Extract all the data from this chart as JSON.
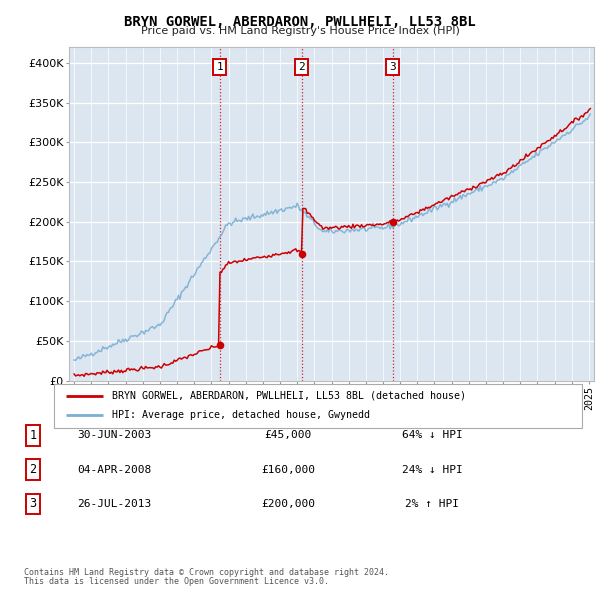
{
  "title": "BRYN GORWEL, ABERDARON, PWLLHELI, LL53 8BL",
  "subtitle": "Price paid vs. HM Land Registry's House Price Index (HPI)",
  "legend_line1": "BRYN GORWEL, ABERDARON, PWLLHELI, LL53 8BL (detached house)",
  "legend_line2": "HPI: Average price, detached house, Gwynedd",
  "transactions": [
    {
      "num": "1",
      "date": "30-JUN-2003",
      "price": "£45,000",
      "pct": "64% ↓ HPI",
      "x": 2003.49
    },
    {
      "num": "2",
      "date": "04-APR-2008",
      "price": "£160,000",
      "pct": "24% ↓ HPI",
      "x": 2008.26
    },
    {
      "num": "3",
      "date": "26-JUL-2013",
      "price": "£200,000",
      "pct": "2% ↑ HPI",
      "x": 2013.56
    }
  ],
  "sale_prices": [
    45000,
    160000,
    200000
  ],
  "footer1": "Contains HM Land Registry data © Crown copyright and database right 2024.",
  "footer2": "This data is licensed under the Open Government Licence v3.0.",
  "red_color": "#cc0000",
  "blue_color": "#7bafd4",
  "background_color": "#dce6f1",
  "plot_bg_color": "#ffffff",
  "ylim": [
    0,
    420000
  ],
  "xlim": [
    1994.7,
    2025.3
  ],
  "yticks": [
    0,
    50000,
    100000,
    150000,
    200000,
    250000,
    300000,
    350000,
    400000
  ],
  "ytick_labels": [
    "£0",
    "£50K",
    "£100K",
    "£150K",
    "£200K",
    "£250K",
    "£300K",
    "£350K",
    "£400K"
  ]
}
